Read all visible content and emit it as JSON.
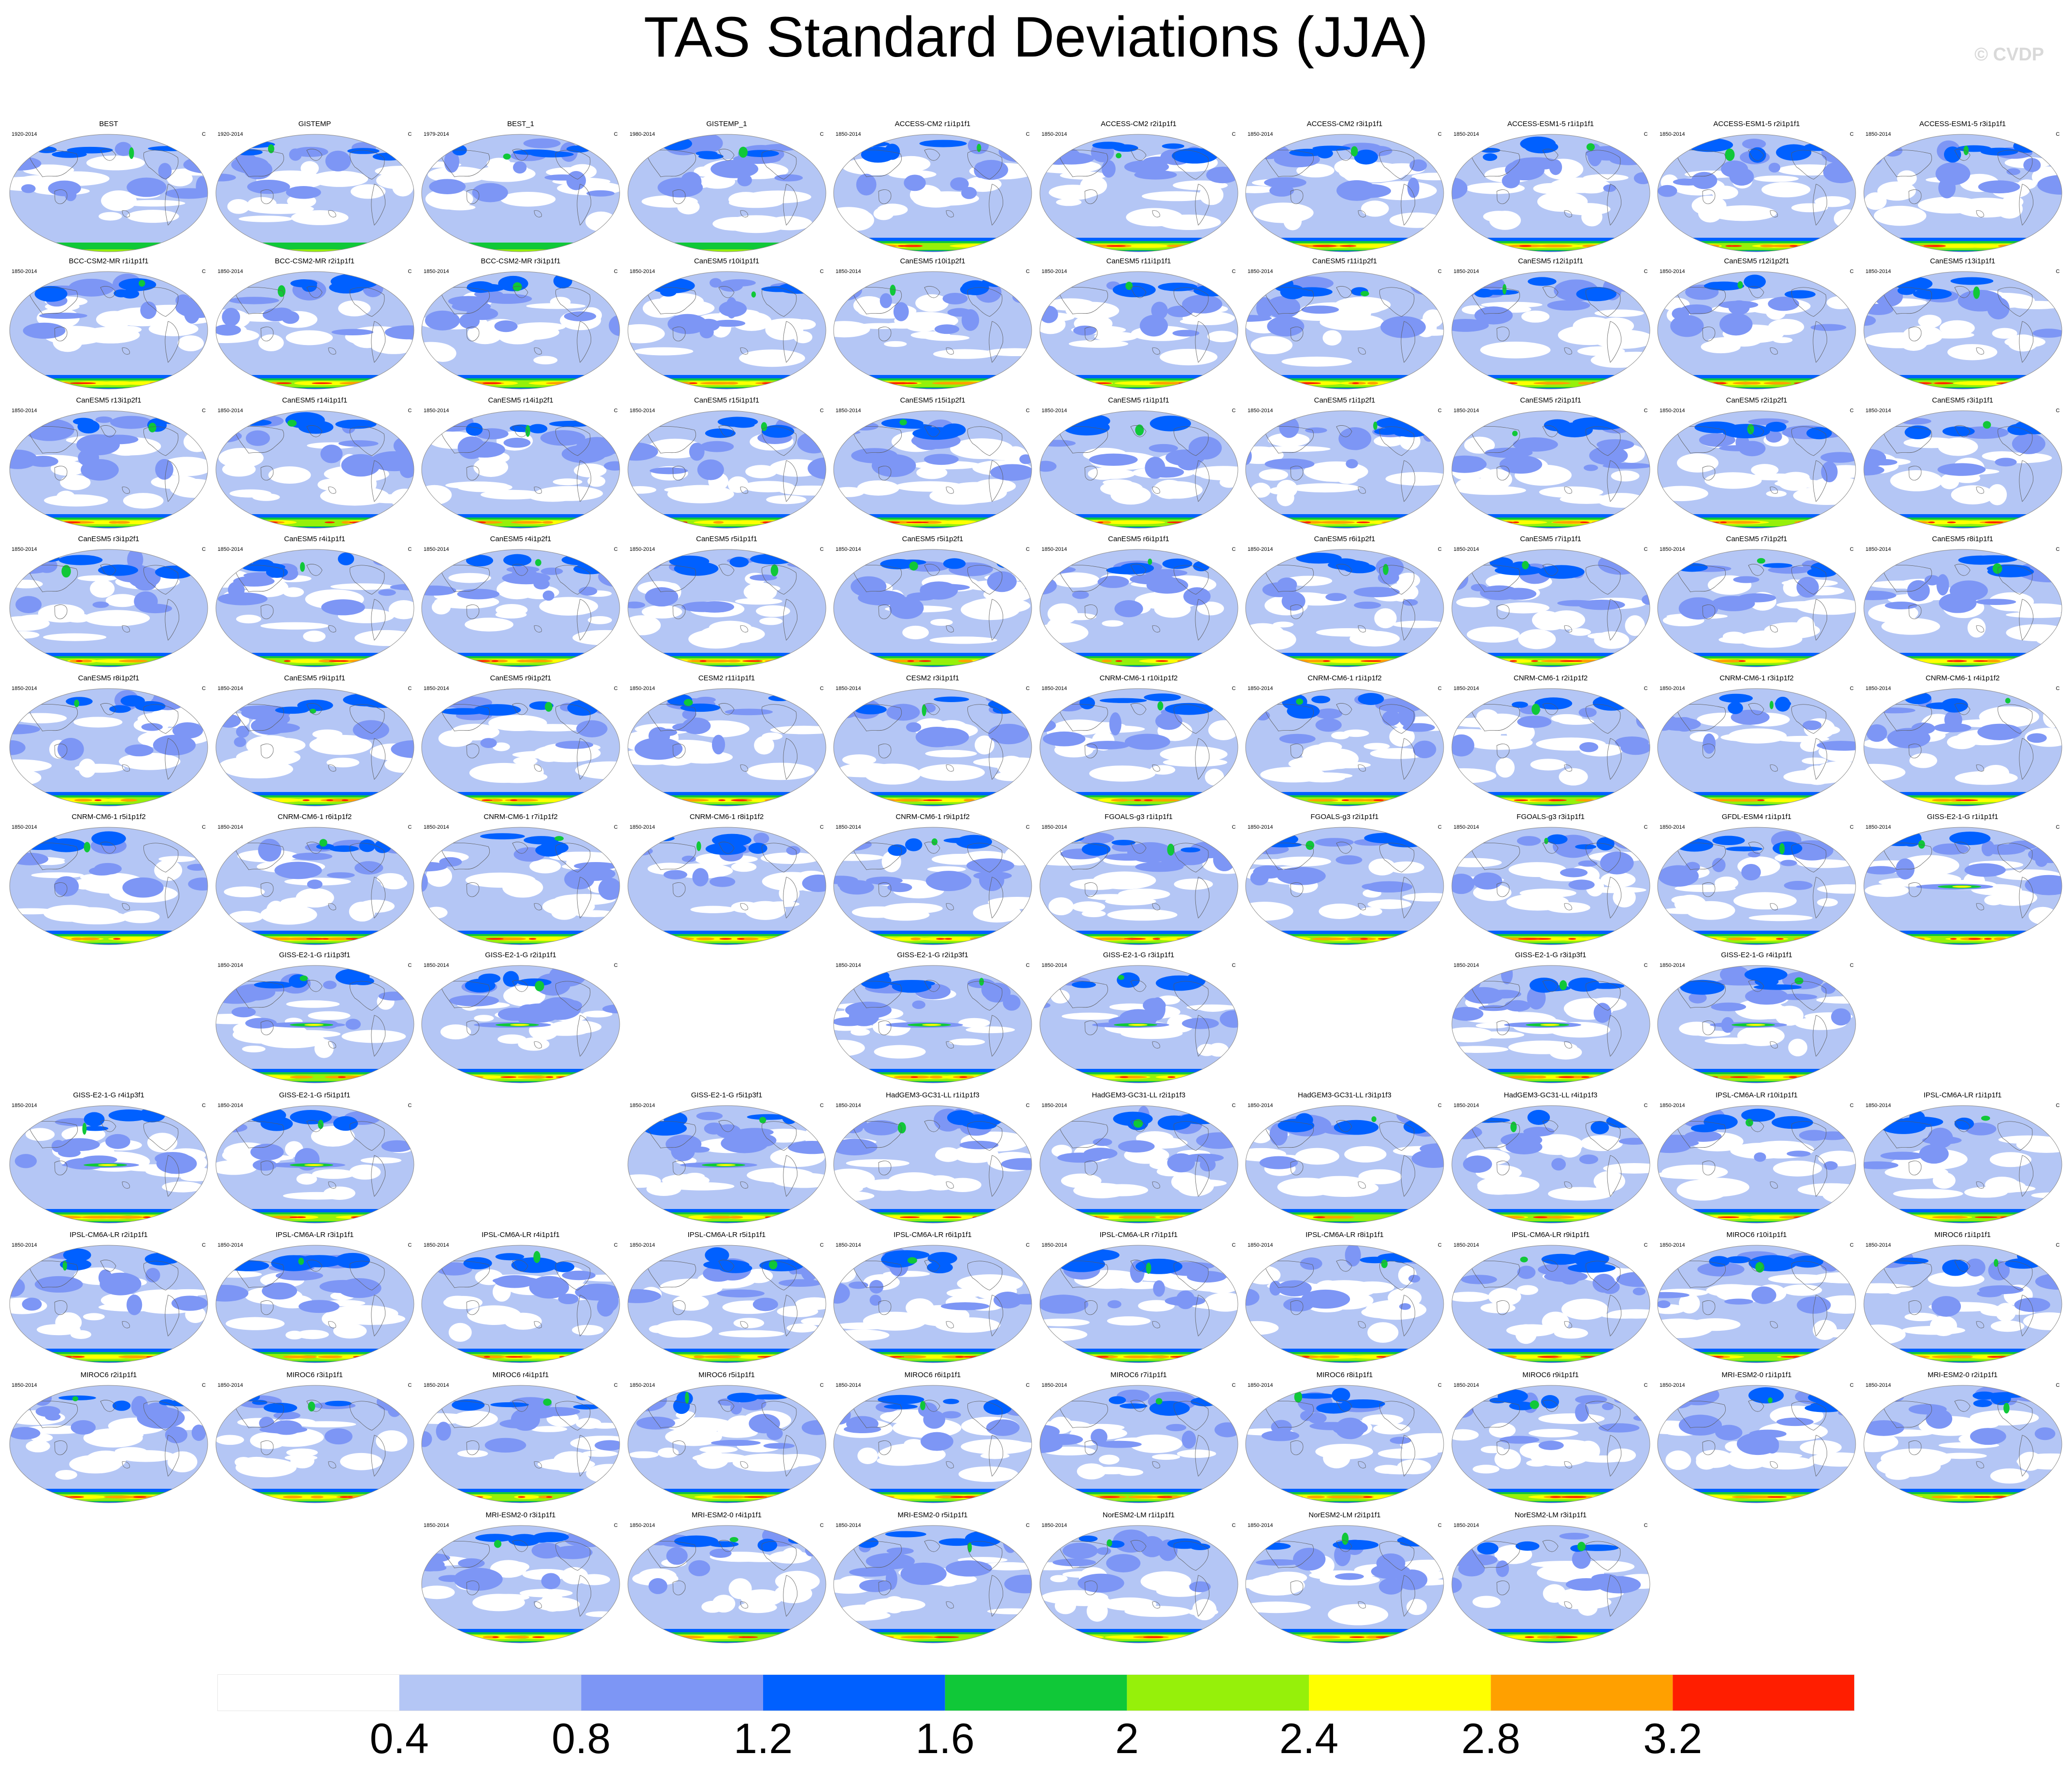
{
  "title": "TAS Standard Deviations (JJA)",
  "watermark": "© CVDP",
  "grid": {
    "rows": 11,
    "cols": 10
  },
  "panels": [
    {
      "cell": [
        0,
        0
      ],
      "title": "BEST",
      "left": "1920-2014",
      "right": "C"
    },
    {
      "cell": [
        0,
        1
      ],
      "title": "GISTEMP",
      "left": "1920-2014",
      "right": "C"
    },
    {
      "cell": [
        0,
        2
      ],
      "title": "BEST_1",
      "left": "1979-2014",
      "right": "C"
    },
    {
      "cell": [
        0,
        3
      ],
      "title": "GISTEMP_1",
      "left": "1980-2014",
      "right": "C"
    },
    {
      "cell": [
        0,
        4
      ],
      "title": "ACCESS-CM2 r1i1p1f1",
      "left": "1850-2014",
      "right": "C"
    },
    {
      "cell": [
        0,
        5
      ],
      "title": "ACCESS-CM2 r2i1p1f1",
      "left": "1850-2014",
      "right": "C"
    },
    {
      "cell": [
        0,
        6
      ],
      "title": "ACCESS-CM2 r3i1p1f1",
      "left": "1850-2014",
      "right": "C"
    },
    {
      "cell": [
        0,
        7
      ],
      "title": "ACCESS-ESM1-5 r1i1p1f1",
      "left": "1850-2014",
      "right": "C"
    },
    {
      "cell": [
        0,
        8
      ],
      "title": "ACCESS-ESM1-5 r2i1p1f1",
      "left": "1850-2014",
      "right": "C"
    },
    {
      "cell": [
        0,
        9
      ],
      "title": "ACCESS-ESM1-5 r3i1p1f1",
      "left": "1850-2014",
      "right": "C"
    },
    {
      "cell": [
        1,
        0
      ],
      "title": "BCC-CSM2-MR r1i1p1f1",
      "left": "1850-2014",
      "right": "C"
    },
    {
      "cell": [
        1,
        1
      ],
      "title": "BCC-CSM2-MR r2i1p1f1",
      "left": "1850-2014",
      "right": "C"
    },
    {
      "cell": [
        1,
        2
      ],
      "title": "BCC-CSM2-MR r3i1p1f1",
      "left": "1850-2014",
      "right": "C"
    },
    {
      "cell": [
        1,
        3
      ],
      "title": "CanESM5 r10i1p1f1",
      "left": "1850-2014",
      "right": "C"
    },
    {
      "cell": [
        1,
        4
      ],
      "title": "CanESM5 r10i1p2f1",
      "left": "1850-2014",
      "right": "C"
    },
    {
      "cell": [
        1,
        5
      ],
      "title": "CanESM5 r11i1p1f1",
      "left": "1850-2014",
      "right": "C"
    },
    {
      "cell": [
        1,
        6
      ],
      "title": "CanESM5 r11i1p2f1",
      "left": "1850-2014",
      "right": "C"
    },
    {
      "cell": [
        1,
        7
      ],
      "title": "CanESM5 r12i1p1f1",
      "left": "1850-2014",
      "right": "C"
    },
    {
      "cell": [
        1,
        8
      ],
      "title": "CanESM5 r12i1p2f1",
      "left": "1850-2014",
      "right": "C"
    },
    {
      "cell": [
        1,
        9
      ],
      "title": "CanESM5 r13i1p1f1",
      "left": "1850-2014",
      "right": "C"
    },
    {
      "cell": [
        2,
        0
      ],
      "title": "CanESM5 r13i1p2f1",
      "left": "1850-2014",
      "right": "C"
    },
    {
      "cell": [
        2,
        1
      ],
      "title": "CanESM5 r14i1p1f1",
      "left": "1850-2014",
      "right": "C"
    },
    {
      "cell": [
        2,
        2
      ],
      "title": "CanESM5 r14i1p2f1",
      "left": "1850-2014",
      "right": "C"
    },
    {
      "cell": [
        2,
        3
      ],
      "title": "CanESM5 r15i1p1f1",
      "left": "1850-2014",
      "right": "C"
    },
    {
      "cell": [
        2,
        4
      ],
      "title": "CanESM5 r15i1p2f1",
      "left": "1850-2014",
      "right": "C"
    },
    {
      "cell": [
        2,
        5
      ],
      "title": "CanESM5 r1i1p1f1",
      "left": "1850-2014",
      "right": "C"
    },
    {
      "cell": [
        2,
        6
      ],
      "title": "CanESM5 r1i1p2f1",
      "left": "1850-2014",
      "right": "C"
    },
    {
      "cell": [
        2,
        7
      ],
      "title": "CanESM5 r2i1p1f1",
      "left": "1850-2014",
      "right": "C"
    },
    {
      "cell": [
        2,
        8
      ],
      "title": "CanESM5 r2i1p2f1",
      "left": "1850-2014",
      "right": "C"
    },
    {
      "cell": [
        2,
        9
      ],
      "title": "CanESM5 r3i1p1f1",
      "left": "1850-2014",
      "right": "C"
    },
    {
      "cell": [
        3,
        0
      ],
      "title": "CanESM5 r3i1p2f1",
      "left": "1850-2014",
      "right": "C"
    },
    {
      "cell": [
        3,
        1
      ],
      "title": "CanESM5 r4i1p1f1",
      "left": "1850-2014",
      "right": "C"
    },
    {
      "cell": [
        3,
        2
      ],
      "title": "CanESM5 r4i1p2f1",
      "left": "1850-2014",
      "right": "C"
    },
    {
      "cell": [
        3,
        3
      ],
      "title": "CanESM5 r5i1p1f1",
      "left": "1850-2014",
      "right": "C"
    },
    {
      "cell": [
        3,
        4
      ],
      "title": "CanESM5 r5i1p2f1",
      "left": "1850-2014",
      "right": "C"
    },
    {
      "cell": [
        3,
        5
      ],
      "title": "CanESM5 r6i1p1f1",
      "left": "1850-2014",
      "right": "C"
    },
    {
      "cell": [
        3,
        6
      ],
      "title": "CanESM5 r6i1p2f1",
      "left": "1850-2014",
      "right": "C"
    },
    {
      "cell": [
        3,
        7
      ],
      "title": "CanESM5 r7i1p1f1",
      "left": "1850-2014",
      "right": "C"
    },
    {
      "cell": [
        3,
        8
      ],
      "title": "CanESM5 r7i1p2f1",
      "left": "1850-2014",
      "right": "C"
    },
    {
      "cell": [
        3,
        9
      ],
      "title": "CanESM5 r8i1p1f1",
      "left": "1850-2014",
      "right": "C"
    },
    {
      "cell": [
        4,
        0
      ],
      "title": "CanESM5 r8i1p2f1",
      "left": "1850-2014",
      "right": "C"
    },
    {
      "cell": [
        4,
        1
      ],
      "title": "CanESM5 r9i1p1f1",
      "left": "1850-2014",
      "right": "C"
    },
    {
      "cell": [
        4,
        2
      ],
      "title": "CanESM5 r9i1p2f1",
      "left": "1850-2014",
      "right": "C"
    },
    {
      "cell": [
        4,
        3
      ],
      "title": "CESM2 r11i1p1f1",
      "left": "1850-2014",
      "right": "C"
    },
    {
      "cell": [
        4,
        4
      ],
      "title": "CESM2 r3i1p1f1",
      "left": "1850-2014",
      "right": "C"
    },
    {
      "cell": [
        4,
        5
      ],
      "title": "CNRM-CM6-1 r10i1p1f2",
      "left": "1850-2014",
      "right": "C"
    },
    {
      "cell": [
        4,
        6
      ],
      "title": "CNRM-CM6-1 r1i1p1f2",
      "left": "1850-2014",
      "right": "C"
    },
    {
      "cell": [
        4,
        7
      ],
      "title": "CNRM-CM6-1 r2i1p1f2",
      "left": "1850-2014",
      "right": "C"
    },
    {
      "cell": [
        4,
        8
      ],
      "title": "CNRM-CM6-1 r3i1p1f2",
      "left": "1850-2014",
      "right": "C"
    },
    {
      "cell": [
        4,
        9
      ],
      "title": "CNRM-CM6-1 r4i1p1f2",
      "left": "1850-2014",
      "right": "C"
    },
    {
      "cell": [
        5,
        0
      ],
      "title": "CNRM-CM6-1 r5i1p1f2",
      "left": "1850-2014",
      "right": "C"
    },
    {
      "cell": [
        5,
        1
      ],
      "title": "CNRM-CM6-1 r6i1p1f2",
      "left": "1850-2014",
      "right": "C"
    },
    {
      "cell": [
        5,
        2
      ],
      "title": "CNRM-CM6-1 r7i1p1f2",
      "left": "1850-2014",
      "right": "C"
    },
    {
      "cell": [
        5,
        3
      ],
      "title": "CNRM-CM6-1 r8i1p1f2",
      "left": "1850-2014",
      "right": "C"
    },
    {
      "cell": [
        5,
        4
      ],
      "title": "CNRM-CM6-1 r9i1p1f2",
      "left": "1850-2014",
      "right": "C"
    },
    {
      "cell": [
        5,
        5
      ],
      "title": "FGOALS-g3 r1i1p1f1",
      "left": "1850-2014",
      "right": "C"
    },
    {
      "cell": [
        5,
        6
      ],
      "title": "FGOALS-g3 r2i1p1f1",
      "left": "1850-2014",
      "right": "C"
    },
    {
      "cell": [
        5,
        7
      ],
      "title": "FGOALS-g3 r3i1p1f1",
      "left": "1850-2014",
      "right": "C"
    },
    {
      "cell": [
        5,
        8
      ],
      "title": "GFDL-ESM4 r1i1p1f1",
      "left": "1850-2014",
      "right": "C"
    },
    {
      "cell": [
        5,
        9
      ],
      "title": "GISS-E2-1-G r1i1p1f1",
      "left": "1850-2014",
      "right": "C"
    },
    {
      "cell": [
        6,
        1
      ],
      "title": "GISS-E2-1-G r1i1p3f1",
      "left": "1850-2014",
      "right": "C"
    },
    {
      "cell": [
        6,
        2
      ],
      "title": "GISS-E2-1-G r2i1p1f1",
      "left": "1850-2014",
      "right": "C"
    },
    {
      "cell": [
        6,
        4
      ],
      "title": "GISS-E2-1-G r2i1p3f1",
      "left": "1850-2014",
      "right": "C"
    },
    {
      "cell": [
        6,
        5
      ],
      "title": "GISS-E2-1-G r3i1p1f1",
      "left": "1850-2014",
      "right": "C"
    },
    {
      "cell": [
        6,
        7
      ],
      "title": "GISS-E2-1-G r3i1p3f1",
      "left": "1850-2014",
      "right": "C"
    },
    {
      "cell": [
        6,
        8
      ],
      "title": "GISS-E2-1-G r4i1p1f1",
      "left": "1850-2014",
      "right": "C"
    },
    {
      "cell": [
        7,
        0
      ],
      "title": "GISS-E2-1-G r4i1p3f1",
      "left": "1850-2014",
      "right": "C"
    },
    {
      "cell": [
        7,
        1
      ],
      "title": "GISS-E2-1-G r5i1p1f1",
      "left": "1850-2014",
      "right": "C"
    },
    {
      "cell": [
        7,
        3
      ],
      "title": "GISS-E2-1-G r5i1p3f1",
      "left": "1850-2014",
      "right": "C"
    },
    {
      "cell": [
        7,
        4
      ],
      "title": "HadGEM3-GC31-LL r1i1p1f3",
      "left": "1850-2014",
      "right": "C"
    },
    {
      "cell": [
        7,
        5
      ],
      "title": "HadGEM3-GC31-LL r2i1p1f3",
      "left": "1850-2014",
      "right": "C"
    },
    {
      "cell": [
        7,
        6
      ],
      "title": "HadGEM3-GC31-LL r3i1p1f3",
      "left": "1850-2014",
      "right": "C"
    },
    {
      "cell": [
        7,
        7
      ],
      "title": "HadGEM3-GC31-LL r4i1p1f3",
      "left": "1850-2014",
      "right": "C"
    },
    {
      "cell": [
        7,
        8
      ],
      "title": "IPSL-CM6A-LR r10i1p1f1",
      "left": "1850-2014",
      "right": "C"
    },
    {
      "cell": [
        7,
        9
      ],
      "title": "IPSL-CM6A-LR r1i1p1f1",
      "left": "1850-2014",
      "right": "C"
    },
    {
      "cell": [
        8,
        0
      ],
      "title": "IPSL-CM6A-LR r2i1p1f1",
      "left": "1850-2014",
      "right": "C"
    },
    {
      "cell": [
        8,
        1
      ],
      "title": "IPSL-CM6A-LR r3i1p1f1",
      "left": "1850-2014",
      "right": "C"
    },
    {
      "cell": [
        8,
        2
      ],
      "title": "IPSL-CM6A-LR r4i1p1f1",
      "left": "1850-2014",
      "right": "C"
    },
    {
      "cell": [
        8,
        3
      ],
      "title": "IPSL-CM6A-LR r5i1p1f1",
      "left": "1850-2014",
      "right": "C"
    },
    {
      "cell": [
        8,
        4
      ],
      "title": "IPSL-CM6A-LR r6i1p1f1",
      "left": "1850-2014",
      "right": "C"
    },
    {
      "cell": [
        8,
        5
      ],
      "title": "IPSL-CM6A-LR r7i1p1f1",
      "left": "1850-2014",
      "right": "C"
    },
    {
      "cell": [
        8,
        6
      ],
      "title": "IPSL-CM6A-LR r8i1p1f1",
      "left": "1850-2014",
      "right": "C"
    },
    {
      "cell": [
        8,
        7
      ],
      "title": "IPSL-CM6A-LR r9i1p1f1",
      "left": "1850-2014",
      "right": "C"
    },
    {
      "cell": [
        8,
        8
      ],
      "title": "MIROC6 r10i1p1f1",
      "left": "1850-2014",
      "right": "C"
    },
    {
      "cell": [
        8,
        9
      ],
      "title": "MIROC6 r1i1p1f1",
      "left": "1850-2014",
      "right": "C"
    },
    {
      "cell": [
        9,
        0
      ],
      "title": "MIROC6 r2i1p1f1",
      "left": "1850-2014",
      "right": "C"
    },
    {
      "cell": [
        9,
        1
      ],
      "title": "MIROC6 r3i1p1f1",
      "left": "1850-2014",
      "right": "C"
    },
    {
      "cell": [
        9,
        2
      ],
      "title": "MIROC6 r4i1p1f1",
      "left": "1850-2014",
      "right": "C"
    },
    {
      "cell": [
        9,
        3
      ],
      "title": "MIROC6 r5i1p1f1",
      "left": "1850-2014",
      "right": "C"
    },
    {
      "cell": [
        9,
        4
      ],
      "title": "MIROC6 r6i1p1f1",
      "left": "1850-2014",
      "right": "C"
    },
    {
      "cell": [
        9,
        5
      ],
      "title": "MIROC6 r7i1p1f1",
      "left": "1850-2014",
      "right": "C"
    },
    {
      "cell": [
        9,
        6
      ],
      "title": "MIROC6 r8i1p1f1",
      "left": "1850-2014",
      "right": "C"
    },
    {
      "cell": [
        9,
        7
      ],
      "title": "MIROC6 r9i1p1f1",
      "left": "1850-2014",
      "right": "C"
    },
    {
      "cell": [
        9,
        8
      ],
      "title": "MRI-ESM2-0 r1i1p1f1",
      "left": "1850-2014",
      "right": "C"
    },
    {
      "cell": [
        9,
        9
      ],
      "title": "MRI-ESM2-0 r2i1p1f1",
      "left": "1850-2014",
      "right": "C"
    },
    {
      "cell": [
        10,
        2
      ],
      "title": "MRI-ESM2-0 r3i1p1f1",
      "left": "1850-2014",
      "right": "C"
    },
    {
      "cell": [
        10,
        3
      ],
      "title": "MRI-ESM2-0 r4i1p1f1",
      "left": "1850-2014",
      "right": "C"
    },
    {
      "cell": [
        10,
        4
      ],
      "title": "MRI-ESM2-0 r5i1p1f1",
      "left": "1850-2014",
      "right": "C"
    },
    {
      "cell": [
        10,
        5
      ],
      "title": "NorESM2-LM r1i1p1f1",
      "left": "1850-2014",
      "right": "C"
    },
    {
      "cell": [
        10,
        6
      ],
      "title": "NorESM2-LM r2i1p1f1",
      "left": "1850-2014",
      "right": "C"
    },
    {
      "cell": [
        10,
        7
      ],
      "title": "NorESM2-LM r3i1p1f1",
      "left": "1850-2014",
      "right": "C"
    }
  ],
  "colorbar": {
    "colors": [
      "#ffffff",
      "#b4c6f5",
      "#7d96f5",
      "#0060ff",
      "#10c838",
      "#96f00a",
      "#ffff00",
      "#ffa000",
      "#ff1e00"
    ],
    "labels": [
      "0.4",
      "0.8",
      "1.2",
      "1.6",
      "2",
      "2.4",
      "2.8",
      "3.2"
    ]
  },
  "map_colors": {
    "background": "#ffffff",
    "light_blue": "#b4c6f5",
    "medium_blue": "#7d96f5",
    "blue": "#0060ff",
    "green": "#10c838",
    "yellow_green": "#96f00a",
    "yellow": "#ffff00",
    "orange": "#ffa000",
    "red": "#ff1e00",
    "coastline": "#5a5a5a"
  }
}
